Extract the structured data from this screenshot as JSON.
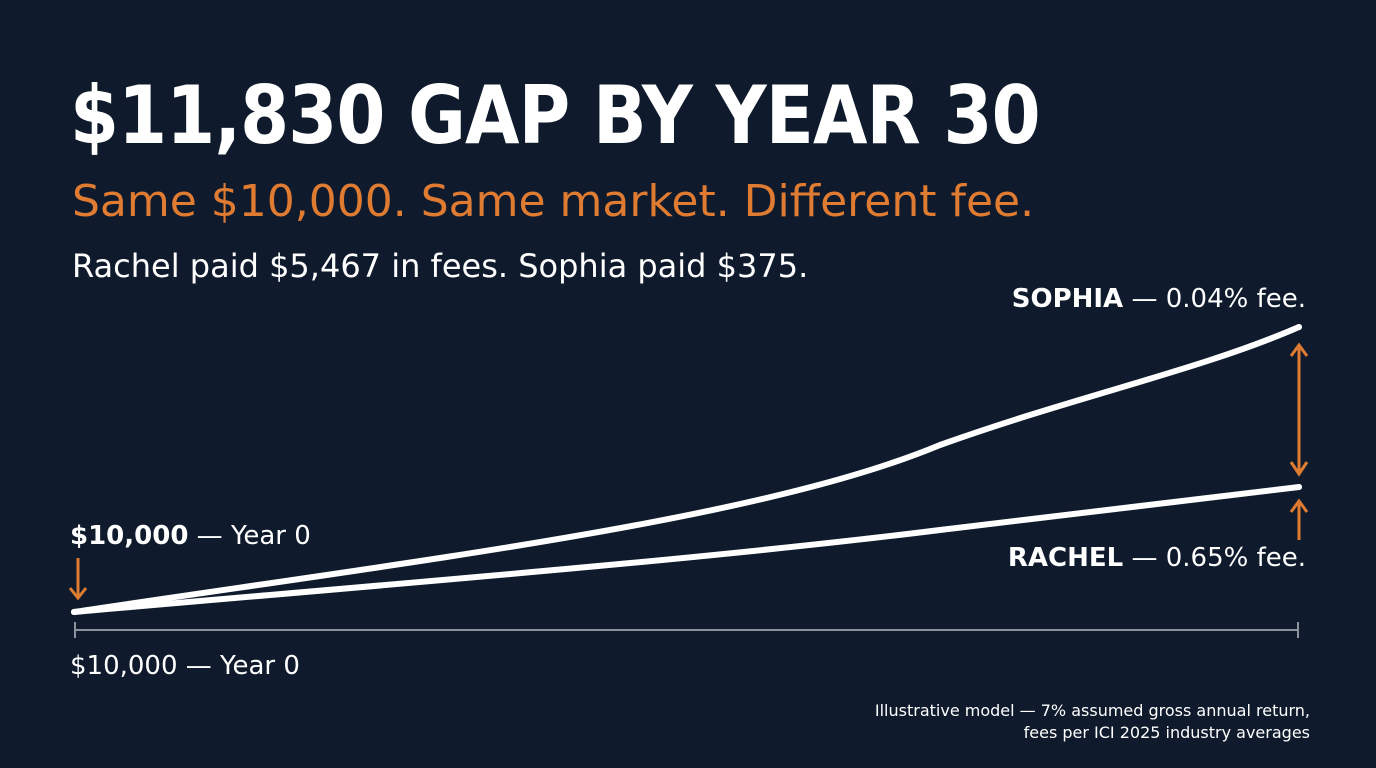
{
  "headline": "$11,830 GAP BY YEAR 30",
  "subhead": "Same $10,000. Same market. Different fee.",
  "detail": "Rachel paid $5,467 in fees. Sophia paid $375.",
  "labels": {
    "sophia_name": "SOPHIA",
    "sophia_fee": " — 0.04% fee.",
    "rachel_name": "RACHEL",
    "rachel_fee": " — 0.65% fee.",
    "start_value": "$10,000",
    "start_year": " — Year 0",
    "axis_start": "$10,000 — Year 0"
  },
  "footnote": {
    "line1": "Illustrative model — 7% assumed gross annual return,",
    "line2": "fees per ICI 2025 industry averages"
  },
  "colors": {
    "background": "#0f1b2d",
    "accent": "#e07b32",
    "line": "#ffffff",
    "axis": "#8a929c"
  },
  "chart_data": {
    "type": "line",
    "x": [
      0,
      30
    ],
    "xlim": [
      0,
      30
    ],
    "start_value": 10000,
    "gap_at_year_30": 11830,
    "series": [
      {
        "name": "SOPHIA",
        "fee": "0.04%",
        "style": "curved"
      },
      {
        "name": "RACHEL",
        "fee": "0.65%",
        "style": "near-linear"
      }
    ],
    "annotations": [
      "arrow-down at start ($10,000 — Year 0)",
      "double-headed arrow showing gap at year 30",
      "arrow-up to Rachel end point"
    ],
    "grid": false,
    "legend": "none"
  }
}
